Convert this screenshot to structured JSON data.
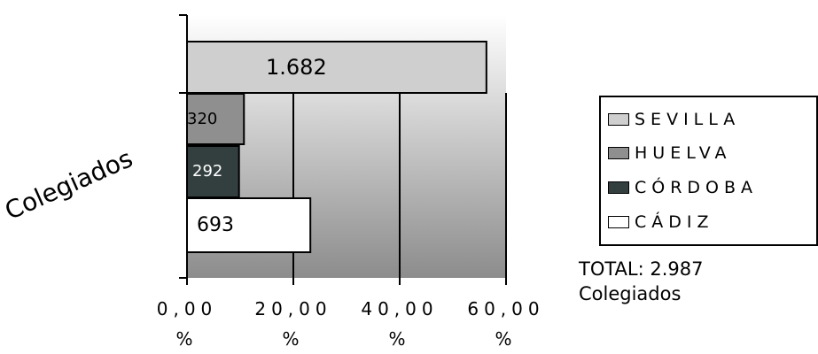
{
  "chart_data": {
    "type": "bar",
    "orientation": "horizontal",
    "ylabel": "Colegiados",
    "xlim": [
      0,
      60
    ],
    "xticks": [
      {
        "value": 0,
        "label": "0,00\n%"
      },
      {
        "value": 20,
        "label": "20,00\n%"
      },
      {
        "value": 40,
        "label": "40,00\n%"
      },
      {
        "value": 60,
        "label": "60,00\n%"
      }
    ],
    "bars": [
      {
        "category": "SEVILLA",
        "count_label": "1.682",
        "percent": 56.31,
        "color": "#cfcfcf"
      },
      {
        "category": "HUELVA",
        "count_label": "320",
        "percent": 10.71,
        "color": "#8f8f8f"
      },
      {
        "category": "CÓRDOBA",
        "count_label": "292",
        "percent": 9.78,
        "color": "#333f3f"
      },
      {
        "category": "CÁDIZ",
        "count_label": "693",
        "percent": 23.2,
        "color": "#ffffff"
      }
    ],
    "legend": {
      "placement": "right",
      "items": [
        {
          "label": "SEVILLA",
          "color": "#cfcfcf"
        },
        {
          "label": "HUELVA",
          "color": "#8f8f8f"
        },
        {
          "label": "CÓRDOBA",
          "color": "#333f3f"
        },
        {
          "label": "CÁDIZ",
          "color": "#ffffff"
        }
      ]
    },
    "annotation": {
      "line1": "TOTAL: 2.987",
      "line2": "Colegiados"
    },
    "grid": true
  }
}
